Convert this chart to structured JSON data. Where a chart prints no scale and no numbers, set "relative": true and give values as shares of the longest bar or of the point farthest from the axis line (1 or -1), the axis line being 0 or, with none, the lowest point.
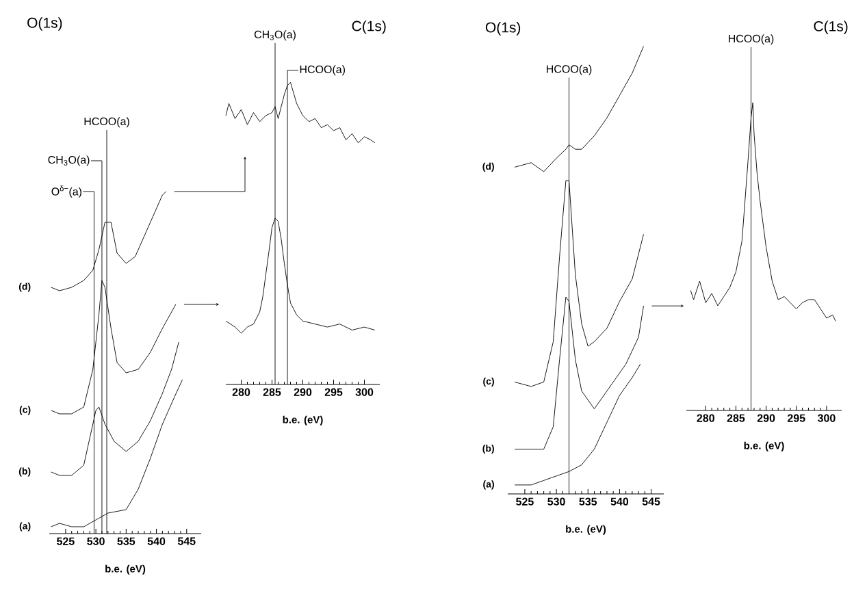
{
  "chart_data": [
    {
      "type": "line",
      "relative": true,
      "title": "O(1s)",
      "xlabel": "b.e. (eV)",
      "xlim": [
        522.3,
        547.4
      ],
      "xticks": [
        525,
        530,
        535,
        540,
        545
      ],
      "series": [
        {
          "name": "(a)",
          "color": "#000000",
          "x": [
            522.6,
            524,
            526,
            528,
            530,
            532,
            535,
            537,
            539,
            541,
            543,
            544.3
          ],
          "values": [
            0.02,
            0.03,
            0.02,
            0.02,
            0.04,
            0.06,
            0.07,
            0.13,
            0.22,
            0.32,
            0.4,
            0.45
          ]
        },
        {
          "name": "(b)",
          "color": "#000000",
          "x": [
            522.6,
            524,
            526,
            528,
            529,
            530,
            530.5,
            531.5,
            533,
            535,
            537,
            539,
            541,
            542.5,
            543.7
          ],
          "values": [
            0.18,
            0.17,
            0.17,
            0.2,
            0.28,
            0.36,
            0.37,
            0.32,
            0.27,
            0.24,
            0.27,
            0.33,
            0.41,
            0.48,
            0.56
          ]
        },
        {
          "name": "(c)",
          "color": "#000000",
          "x": [
            522.6,
            524,
            526,
            528,
            529.5,
            530.5,
            531,
            531.5,
            532.5,
            533.5,
            535,
            537,
            539,
            541,
            543.2
          ],
          "values": [
            0.36,
            0.35,
            0.35,
            0.37,
            0.48,
            0.64,
            0.74,
            0.72,
            0.6,
            0.5,
            0.47,
            0.48,
            0.53,
            0.6,
            0.67
          ]
        },
        {
          "name": "(d)",
          "color": "#000000",
          "x": [
            522.6,
            524,
            526,
            528,
            529.5,
            530.5,
            531.5,
            532.5,
            533.5,
            535,
            536.5,
            538,
            539.5,
            541,
            541.6
          ],
          "values": [
            0.72,
            0.71,
            0.72,
            0.74,
            0.77,
            0.83,
            0.91,
            0.91,
            0.82,
            0.79,
            0.81,
            0.87,
            0.93,
            0.99,
            1.0
          ]
        }
      ],
      "ref_lines": [
        {
          "axis": "x",
          "value": 529.7,
          "label": "O$^{δ−}$(a)"
        },
        {
          "axis": "x",
          "value": 531,
          "label": "CH$_{3}$O(a)"
        },
        {
          "axis": "x",
          "value": 531.8,
          "label": "HCOO(a)"
        }
      ]
    },
    {
      "type": "line",
      "relative": true,
      "title": "C(1s)",
      "xlabel": "b.e. (eV)",
      "xlim": [
        277.5,
        302.5
      ],
      "xticks": [
        280,
        285,
        290,
        295,
        300
      ],
      "series": [
        {
          "color": "#000000",
          "x": [
            277.5,
            279,
            280,
            281,
            282,
            283,
            283.5,
            284.5,
            285,
            285.5,
            286,
            286.5,
            287,
            287.5,
            288,
            289,
            290,
            292,
            294,
            296,
            298,
            300,
            301.7
          ],
          "values": [
            0.21,
            0.19,
            0.17,
            0.19,
            0.2,
            0.24,
            0.29,
            0.44,
            0.52,
            0.55,
            0.54,
            0.48,
            0.4,
            0.33,
            0.27,
            0.23,
            0.21,
            0.2,
            0.19,
            0.2,
            0.18,
            0.19,
            0.18
          ]
        },
        {
          "color": "#000000",
          "x": [
            277.5,
            278,
            279,
            280,
            281,
            282,
            283,
            284,
            285,
            285.5,
            286,
            287,
            287.5,
            288,
            289,
            290,
            291,
            292,
            293,
            294,
            295,
            296,
            297,
            298,
            299,
            300,
            301,
            301.7
          ],
          "values": [
            0.89,
            0.93,
            0.88,
            0.91,
            0.86,
            0.9,
            0.87,
            0.89,
            0.9,
            0.92,
            0.88,
            0.96,
            0.99,
            1.0,
            0.93,
            0.89,
            0.87,
            0.88,
            0.85,
            0.86,
            0.84,
            0.85,
            0.81,
            0.83,
            0.8,
            0.82,
            0.81,
            0.8
          ]
        }
      ],
      "ref_lines": [
        {
          "axis": "x",
          "value": 287.5,
          "label": "HCOO(a)"
        },
        {
          "axis": "x",
          "value": 285.5,
          "label": "CH$_{3}$O(a)"
        }
      ]
    },
    {
      "type": "line",
      "relative": true,
      "title": "O(1s)",
      "xlabel": "b.e. (eV)",
      "xlim": [
        522.3,
        547
      ],
      "xticks": [
        525,
        530,
        535,
        540,
        545
      ],
      "series": [
        {
          "name": "(a)",
          "color": "#000000",
          "x": [
            523.4,
            526,
            528,
            530,
            532,
            534,
            536,
            538,
            540,
            542,
            543.3
          ],
          "values": [
            0.02,
            0.02,
            0.03,
            0.04,
            0.05,
            0.065,
            0.1,
            0.16,
            0.22,
            0.26,
            0.29
          ]
        },
        {
          "name": "(b)",
          "color": "#000000",
          "x": [
            523.4,
            526,
            528,
            529.5,
            530.5,
            531.5,
            532,
            533,
            534,
            535,
            536,
            537.5,
            539,
            541,
            543,
            543.8
          ],
          "values": [
            0.1,
            0.1,
            0.1,
            0.15,
            0.3,
            0.44,
            0.43,
            0.3,
            0.23,
            0.21,
            0.19,
            0.22,
            0.25,
            0.29,
            0.35,
            0.42
          ]
        },
        {
          "name": "(c)",
          "color": "#000000",
          "x": [
            523.4,
            526,
            528,
            529.5,
            530.5,
            531.5,
            532,
            533,
            534,
            535,
            536,
            538,
            540,
            542,
            543.8
          ],
          "values": [
            0.25,
            0.24,
            0.25,
            0.34,
            0.53,
            0.7,
            0.7,
            0.49,
            0.38,
            0.33,
            0.34,
            0.37,
            0.43,
            0.48,
            0.58
          ]
        },
        {
          "name": "(d)",
          "color": "#000000",
          "x": [
            523.4,
            526,
            528,
            530,
            531.5,
            532,
            533,
            534,
            536,
            538,
            540,
            542,
            543.8
          ],
          "values": [
            0.73,
            0.74,
            0.72,
            0.75,
            0.77,
            0.78,
            0.77,
            0.77,
            0.8,
            0.84,
            0.89,
            0.94,
            1.0
          ]
        }
      ],
      "ref_lines": [
        {
          "axis": "x",
          "value": 532,
          "label": "HCOO(a)"
        }
      ]
    },
    {
      "type": "line",
      "relative": true,
      "title": "C(1s)",
      "xlabel": "b.e. (eV)",
      "xlim": [
        276.8,
        302.5
      ],
      "xticks": [
        280,
        285,
        290,
        295,
        300
      ],
      "series": [
        {
          "color": "#000000",
          "x": [
            277.5,
            278,
            279,
            280,
            281,
            282,
            283,
            284,
            285,
            286,
            286.5,
            287,
            287.5,
            287.8,
            288,
            288.5,
            289,
            290,
            291,
            292,
            293,
            294,
            295,
            296,
            297,
            298,
            299,
            300,
            301,
            301.5
          ],
          "values": [
            0.39,
            0.36,
            0.42,
            0.35,
            0.38,
            0.34,
            0.37,
            0.4,
            0.45,
            0.55,
            0.68,
            0.81,
            0.95,
            1.0,
            0.9,
            0.77,
            0.68,
            0.53,
            0.42,
            0.36,
            0.37,
            0.35,
            0.33,
            0.35,
            0.36,
            0.36,
            0.33,
            0.3,
            0.31,
            0.29
          ]
        }
      ],
      "ref_lines": [
        {
          "axis": "x",
          "value": 287.5,
          "label": "HCOO(a)"
        }
      ]
    }
  ]
}
